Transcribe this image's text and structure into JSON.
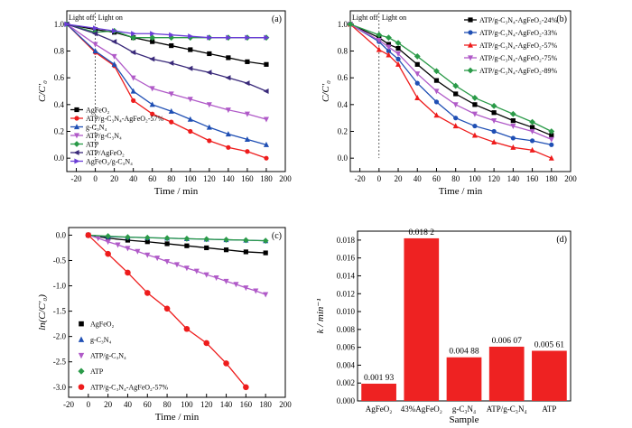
{
  "chart_data": [
    {
      "panel": "(a)",
      "type": "line",
      "xlabel": "Time / min",
      "ylabel": "C/C′₀",
      "xlim": [
        -30,
        200
      ],
      "ylim": [
        -0.1,
        1.1
      ],
      "x_ticks": [
        -20,
        0,
        20,
        40,
        60,
        80,
        100,
        120,
        140,
        160,
        180,
        200
      ],
      "y_ticks": [
        0.0,
        0.2,
        0.4,
        0.6,
        0.8,
        1.0
      ],
      "annotations": [
        "Light off",
        "Light on"
      ],
      "legend_position": "bottom-left",
      "x": [
        -30,
        0,
        20,
        40,
        60,
        80,
        100,
        120,
        140,
        160,
        180
      ],
      "series": [
        {
          "name": "AgFeO₂",
          "marker": "square",
          "color": "#000000",
          "values": [
            1.0,
            0.96,
            0.94,
            0.9,
            0.87,
            0.84,
            0.81,
            0.78,
            0.75,
            0.72,
            0.7
          ]
        },
        {
          "name": "ATP/g-C₃N₄-AgFeO₂-57%",
          "marker": "circle",
          "color": "#ee1c1c",
          "values": [
            1.0,
            0.79,
            0.69,
            0.43,
            0.33,
            0.27,
            0.2,
            0.13,
            0.08,
            0.05,
            0.0
          ]
        },
        {
          "name": "g-C₃N₄",
          "marker": "triangle-up",
          "color": "#1f4fb4",
          "values": [
            1.0,
            0.8,
            0.7,
            0.5,
            0.4,
            0.35,
            0.29,
            0.23,
            0.18,
            0.14,
            0.1
          ]
        },
        {
          "name": "ATP/g-C₃N₄",
          "marker": "triangle-down",
          "color": "#b05ac8",
          "values": [
            1.0,
            0.85,
            0.76,
            0.6,
            0.52,
            0.48,
            0.44,
            0.4,
            0.36,
            0.33,
            0.29
          ]
        },
        {
          "name": "ATP",
          "marker": "diamond",
          "color": "#2a9a48",
          "values": [
            1.0,
            0.94,
            0.95,
            0.9,
            0.9,
            0.9,
            0.9,
            0.9,
            0.9,
            0.9,
            0.9
          ]
        },
        {
          "name": "ATP/AgFeO₂",
          "marker": "triangle-left",
          "color": "#3a2a7a",
          "values": [
            1.0,
            0.93,
            0.87,
            0.79,
            0.74,
            0.71,
            0.67,
            0.64,
            0.6,
            0.56,
            0.5
          ]
        },
        {
          "name": "AgFeO₂/g-C₃N₄",
          "marker": "triangle-right",
          "color": "#6a3dd6",
          "values": [
            1.0,
            0.97,
            0.95,
            0.93,
            0.93,
            0.92,
            0.91,
            0.9,
            0.9,
            0.9,
            0.9
          ]
        }
      ]
    },
    {
      "panel": "(b)",
      "type": "line",
      "xlabel": "Time / min",
      "ylabel": "C/C′₀",
      "xlim": [
        -30,
        200
      ],
      "ylim": [
        -0.1,
        1.1
      ],
      "x_ticks": [
        -20,
        0,
        20,
        40,
        60,
        80,
        100,
        120,
        140,
        160,
        180,
        200
      ],
      "y_ticks": [
        0.0,
        0.2,
        0.4,
        0.6,
        0.8,
        1.0
      ],
      "annotations": [
        "Light off",
        "Light on"
      ],
      "legend_position": "top-right",
      "x": [
        -30,
        0,
        10,
        20,
        40,
        60,
        80,
        100,
        120,
        140,
        160,
        180
      ],
      "series": [
        {
          "name": "ATP/g-C₃N₄-AgFeO₂-24%",
          "marker": "square",
          "color": "#000000",
          "values": [
            1.0,
            0.9,
            0.85,
            0.82,
            0.7,
            0.58,
            0.48,
            0.4,
            0.34,
            0.28,
            0.23,
            0.17
          ]
        },
        {
          "name": "ATP/g-C₃N₄-AgFeO₂-33%",
          "marker": "circle",
          "color": "#1f4fb4",
          "values": [
            1.0,
            0.87,
            0.8,
            0.74,
            0.56,
            0.42,
            0.3,
            0.24,
            0.2,
            0.15,
            0.13,
            0.1
          ]
        },
        {
          "name": "ATP/g-C₃N₄-AgFeO₂-57%",
          "marker": "triangle-up",
          "color": "#ee1c1c",
          "values": [
            1.0,
            0.81,
            0.77,
            0.7,
            0.45,
            0.32,
            0.24,
            0.17,
            0.12,
            0.08,
            0.06,
            0.0
          ]
        },
        {
          "name": "ATP/g-C₃N₄-AgFeO₂-75%",
          "marker": "triangle-down",
          "color": "#b05ac8",
          "values": [
            1.0,
            0.88,
            0.83,
            0.78,
            0.63,
            0.5,
            0.4,
            0.33,
            0.28,
            0.24,
            0.2,
            0.14
          ]
        },
        {
          "name": "ATP/g-C₃N₄-AgFeO₂-89%",
          "marker": "diamond",
          "color": "#2a9a48",
          "values": [
            1.0,
            0.92,
            0.9,
            0.86,
            0.76,
            0.65,
            0.54,
            0.45,
            0.39,
            0.33,
            0.27,
            0.2
          ]
        }
      ]
    },
    {
      "panel": "(c)",
      "type": "scatter",
      "xlabel": "Time / min",
      "ylabel": "ln(C/C′₀)",
      "xlim": [
        -20,
        200
      ],
      "ylim": [
        -3.2,
        0.15
      ],
      "x_ticks": [
        -20,
        0,
        20,
        40,
        60,
        80,
        100,
        120,
        140,
        160,
        180,
        200
      ],
      "y_ticks": [
        0.0,
        -0.5,
        -1.0,
        -1.5,
        -2.0,
        -2.5,
        -3.0
      ],
      "legend_position": "lower-left",
      "fit_lines": true,
      "series": [
        {
          "name": "AgFeO₂",
          "marker": "square",
          "color": "#000000",
          "x": [
            0,
            20,
            40,
            60,
            80,
            100,
            120,
            140,
            160,
            180
          ],
          "values": [
            0.0,
            -0.06,
            -0.1,
            -0.13,
            -0.17,
            -0.21,
            -0.25,
            -0.29,
            -0.33,
            -0.35
          ]
        },
        {
          "name": "g-C₃N₄",
          "marker": "triangle-up",
          "color": "#1f4fb4",
          "x": [
            0,
            20,
            40,
            60,
            80,
            100,
            120,
            140,
            160,
            180
          ],
          "values": [
            0.0,
            -0.03,
            -0.04,
            -0.05,
            -0.06,
            -0.07,
            -0.08,
            -0.09,
            -0.1,
            -0.11
          ]
        },
        {
          "name": "ATP/g-C₃N₄",
          "marker": "triangle-down",
          "color": "#b05ac8",
          "x": [
            0,
            10,
            20,
            30,
            40,
            50,
            60,
            70,
            80,
            90,
            100,
            110,
            120,
            130,
            140,
            150,
            160,
            170,
            180
          ],
          "values": [
            0.0,
            -0.06,
            -0.13,
            -0.19,
            -0.26,
            -0.32,
            -0.39,
            -0.45,
            -0.52,
            -0.58,
            -0.65,
            -0.71,
            -0.78,
            -0.84,
            -0.91,
            -0.97,
            -1.04,
            -1.1,
            -1.17
          ]
        },
        {
          "name": "ATP",
          "marker": "diamond",
          "color": "#2a9a48",
          "x": [
            0,
            20,
            40,
            60,
            80,
            100,
            120,
            140,
            160,
            180
          ],
          "values": [
            0.0,
            -0.02,
            -0.04,
            -0.05,
            -0.06,
            -0.07,
            -0.08,
            -0.09,
            -0.1,
            -0.11
          ]
        },
        {
          "name": "ATP/g-C₃N₄-AgFeO₂-57%",
          "marker": "circle",
          "color": "#ee1c1c",
          "x": [
            0,
            20,
            40,
            60,
            80,
            100,
            120,
            140,
            160
          ],
          "values": [
            0.0,
            -0.37,
            -0.74,
            -1.14,
            -1.45,
            -1.85,
            -2.13,
            -2.53,
            -3.0
          ]
        }
      ]
    },
    {
      "panel": "(d)",
      "type": "bar",
      "xlabel": "Sample",
      "ylabel": "k / min⁻¹",
      "ylim": [
        0.0,
        0.019
      ],
      "y_ticks": [
        0.0,
        0.002,
        0.004,
        0.006,
        0.008,
        0.01,
        0.012,
        0.014,
        0.016,
        0.018
      ],
      "bar_color": "#ee2222",
      "categories": [
        "AgFeO₂",
        "43%AgFeO₂",
        "g-C₃N₄",
        "ATP/g-C₃N₄",
        "ATP"
      ],
      "values": [
        0.00193,
        0.0182,
        0.00488,
        0.00607,
        0.00561
      ],
      "data_labels": [
        "0.001 93",
        "0.018 2",
        "0.004 88",
        "0.006 07",
        "0.005 61"
      ]
    }
  ]
}
